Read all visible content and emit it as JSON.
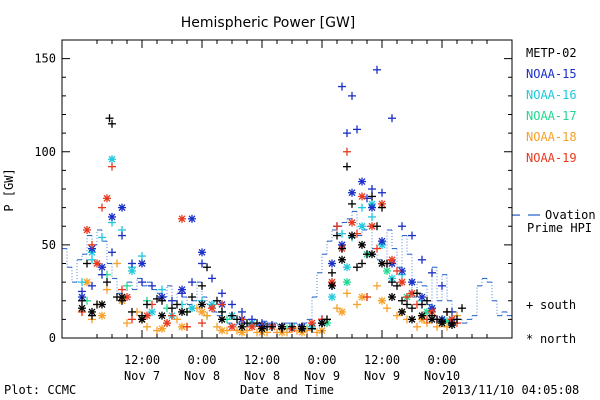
{
  "chart_data": {
    "type": "scatter",
    "title": "Hemispheric Power [GW]",
    "ylabel": "P [GW]",
    "xlabel": "Date and Time",
    "ylim": [
      0,
      160
    ],
    "yticks": [
      0,
      50,
      100,
      150
    ],
    "xlim_hours": [
      -4,
      86
    ],
    "xticks": [
      {
        "hour": 12,
        "time": "12:00",
        "date": "Nov 7"
      },
      {
        "hour": 24,
        "time": "0:00",
        "date": "Nov 8"
      },
      {
        "hour": 36,
        "time": "12:00",
        "date": "Nov 8"
      },
      {
        "hour": 48,
        "time": "0:00",
        "date": "Nov 9"
      },
      {
        "hour": 60,
        "time": "12:00",
        "date": "Nov 9"
      },
      {
        "hour": 72,
        "time": "0:00",
        "date": "Nov10"
      }
    ],
    "series": [
      {
        "name": "METP-02",
        "color": "#000000"
      },
      {
        "name": "NOAA-15",
        "color": "#1a2fc8"
      },
      {
        "name": "NOAA-16",
        "color": "#1fc8dc"
      },
      {
        "name": "NOAA-17",
        "color": "#22d890"
      },
      {
        "name": "NOAA-18",
        "color": "#f7a028"
      },
      {
        "name": "NOAA-19",
        "color": "#e8381e"
      }
    ],
    "markers": {
      "south": "+",
      "north": "*"
    },
    "marker_legend": [
      {
        "symbol": "+",
        "label": "south"
      },
      {
        "symbol": "*",
        "label": "north"
      }
    ],
    "ovation": {
      "label_lines": [
        "Ovation",
        "Prime HPI"
      ],
      "color": "#1f5fc8",
      "value_marker": 66,
      "hours": [
        -4,
        -3,
        -2,
        -1,
        0,
        1,
        2,
        3,
        4,
        5,
        6,
        7,
        8,
        9,
        10,
        11,
        12,
        13,
        14,
        15,
        16,
        17,
        18,
        19,
        20,
        21,
        22,
        23,
        24,
        25,
        26,
        27,
        28,
        29,
        30,
        31,
        32,
        33,
        34,
        35,
        36,
        37,
        38,
        39,
        40,
        41,
        42,
        43,
        44,
        45,
        46,
        47,
        48,
        49,
        50,
        51,
        52,
        53,
        54,
        55,
        56,
        57,
        58,
        59,
        60,
        61,
        62,
        63,
        64,
        65,
        66,
        67,
        68,
        69,
        70,
        71,
        72,
        73,
        74,
        75,
        76,
        77,
        78,
        79,
        80,
        81,
        82,
        83,
        84,
        85,
        86
      ],
      "values": [
        48,
        38,
        30,
        42,
        45,
        55,
        50,
        58,
        52,
        40,
        32,
        24,
        22,
        30,
        26,
        32,
        28,
        30,
        26,
        24,
        22,
        28,
        20,
        24,
        22,
        18,
        20,
        30,
        22,
        18,
        14,
        12,
        10,
        8,
        7,
        8,
        8,
        7,
        7,
        8,
        9,
        8,
        8,
        7,
        8,
        8,
        8,
        7,
        8,
        10,
        22,
        35,
        45,
        52,
        58,
        60,
        62,
        64,
        68,
        55,
        58,
        60,
        48,
        42,
        40,
        58,
        48,
        38,
        55,
        45,
        22,
        30,
        28,
        18,
        38,
        20,
        34,
        20,
        14,
        10,
        8,
        10,
        12,
        28,
        32,
        30,
        20,
        12,
        14,
        12,
        10
      ]
    },
    "points": {
      "METP-02": {
        "hours": [
          0,
          1,
          2,
          3,
          5,
          5.5,
          6,
          7,
          8,
          10,
          12,
          13,
          15,
          16,
          18,
          19,
          21,
          22,
          24,
          25,
          27,
          28,
          30,
          31,
          33,
          35,
          37,
          38,
          40,
          42,
          44,
          46,
          48,
          49,
          50,
          51,
          52,
          53,
          54,
          55,
          56,
          57,
          58,
          59,
          60,
          61,
          62,
          63,
          64,
          65,
          66,
          67,
          68,
          69,
          70,
          71,
          72,
          73,
          74,
          75,
          76,
          0,
          2,
          4,
          8,
          12,
          16,
          20,
          24,
          28,
          32,
          36,
          40,
          44,
          48,
          50,
          52,
          54,
          56,
          58,
          60,
          62,
          64,
          66,
          68,
          70,
          72,
          74
        ],
        "values": [
          20,
          40,
          12,
          18,
          30,
          118,
          115,
          22,
          20,
          14,
          12,
          18,
          21,
          20,
          16,
          18,
          14,
          22,
          28,
          38,
          20,
          14,
          12,
          10,
          8,
          8,
          6,
          6,
          5,
          6,
          6,
          5,
          8,
          10,
          35,
          55,
          48,
          92,
          72,
          38,
          40,
          45,
          76,
          60,
          70,
          40,
          30,
          28,
          20,
          18,
          16,
          24,
          18,
          20,
          12,
          10,
          9,
          14,
          8,
          10,
          16,
          16,
          14,
          18,
          22,
          10,
          12,
          14,
          18,
          10,
          6,
          5,
          6,
          5,
          8,
          28,
          42,
          55,
          50,
          45,
          40,
          22,
          14,
          10,
          12,
          10,
          8,
          7
        ],
        "kinds": [
          "s",
          "s",
          "s",
          "s",
          "s",
          "s",
          "s",
          "s",
          "s",
          "s",
          "s",
          "s",
          "s",
          "s",
          "s",
          "s",
          "s",
          "s",
          "s",
          "s",
          "s",
          "s",
          "s",
          "s",
          "s",
          "s",
          "s",
          "s",
          "s",
          "s",
          "s",
          "s",
          "s",
          "s",
          "s",
          "s",
          "s",
          "s",
          "s",
          "s",
          "s",
          "s",
          "s",
          "s",
          "s",
          "s",
          "s",
          "s",
          "s",
          "s",
          "s",
          "s",
          "s",
          "s",
          "s",
          "s",
          "s",
          "s",
          "s",
          "s",
          "s",
          "n",
          "n",
          "n",
          "n",
          "n",
          "n",
          "n",
          "n",
          "n",
          "n",
          "n",
          "n",
          "n",
          "n",
          "n",
          "n",
          "n",
          "n",
          "n",
          "n",
          "n",
          "n",
          "n",
          "n",
          "n",
          "n",
          "n"
        ]
      },
      "NOAA-15": {
        "hours": [
          0,
          2,
          4,
          6,
          8,
          10,
          12,
          14,
          16,
          18,
          20,
          22,
          24,
          26,
          28,
          30,
          32,
          34,
          36,
          38,
          40,
          42,
          44,
          46,
          48,
          50,
          51,
          52,
          53,
          54,
          55,
          57,
          58,
          59,
          60,
          62,
          64,
          66,
          68,
          70,
          72,
          74,
          0,
          2,
          4,
          6,
          8,
          12,
          16,
          20,
          22,
          24,
          28,
          32,
          36,
          40,
          44,
          48,
          50,
          52,
          54,
          56,
          58,
          60,
          62,
          64,
          66,
          68,
          70,
          72,
          74
        ],
        "values": [
          25,
          28,
          34,
          46,
          55,
          40,
          30,
          28,
          22,
          20,
          24,
          30,
          40,
          32,
          24,
          18,
          14,
          10,
          8,
          7,
          6,
          6,
          6,
          5,
          10,
          28,
          60,
          135,
          110,
          130,
          112,
          75,
          80,
          144,
          78,
          118,
          60,
          55,
          42,
          35,
          28,
          14,
          22,
          48,
          38,
          65,
          70,
          40,
          22,
          26,
          64,
          46,
          18,
          10,
          7,
          6,
          6,
          8,
          40,
          50,
          78,
          84,
          70,
          52,
          40,
          36,
          30,
          22,
          16,
          10,
          8
        ],
        "kinds": [
          "s",
          "s",
          "s",
          "s",
          "s",
          "s",
          "s",
          "s",
          "s",
          "s",
          "s",
          "s",
          "s",
          "s",
          "s",
          "s",
          "s",
          "s",
          "s",
          "s",
          "s",
          "s",
          "s",
          "s",
          "s",
          "s",
          "s",
          "s",
          "s",
          "s",
          "s",
          "s",
          "s",
          "s",
          "s",
          "s",
          "s",
          "s",
          "s",
          "s",
          "s",
          "s",
          "n",
          "n",
          "n",
          "n",
          "n",
          "n",
          "n",
          "n",
          "n",
          "n",
          "n",
          "n",
          "n",
          "n",
          "n",
          "n",
          "n",
          "n",
          "n",
          "n",
          "n",
          "n",
          "n",
          "n",
          "n",
          "n",
          "n",
          "n",
          "n"
        ]
      },
      "NOAA-16": {
        "hours": [
          0,
          2,
          4,
          6,
          8,
          10,
          12,
          16,
          20,
          24,
          28,
          32,
          36,
          40,
          44,
          48,
          50,
          52,
          54,
          56,
          58,
          60,
          62,
          64,
          66,
          68,
          70,
          72,
          74,
          2,
          6,
          10,
          14,
          18,
          22,
          26,
          30,
          34,
          38,
          42,
          46,
          50,
          53,
          56,
          58,
          60,
          62,
          66,
          70,
          74
        ],
        "values": [
          30,
          42,
          54,
          62,
          58,
          38,
          44,
          26,
          18,
          20,
          14,
          10,
          7,
          6,
          6,
          8,
          30,
          56,
          54,
          70,
          65,
          50,
          40,
          34,
          30,
          20,
          16,
          10,
          8,
          46,
          96,
          36,
          14,
          12,
          16,
          18,
          12,
          8,
          6,
          6,
          6,
          22,
          38,
          60,
          72,
          50,
          32,
          24,
          16,
          10
        ],
        "kinds": [
          "s",
          "s",
          "s",
          "s",
          "s",
          "s",
          "s",
          "s",
          "s",
          "s",
          "s",
          "s",
          "s",
          "s",
          "s",
          "s",
          "s",
          "s",
          "s",
          "s",
          "s",
          "s",
          "s",
          "s",
          "s",
          "s",
          "s",
          "s",
          "s",
          "n",
          "n",
          "n",
          "n",
          "n",
          "n",
          "n",
          "n",
          "n",
          "n",
          "n",
          "n",
          "n",
          "n",
          "n",
          "n",
          "n",
          "n",
          "n",
          "n",
          "n"
        ]
      },
      "NOAA-17": {
        "hours": [
          1,
          5,
          9,
          13,
          17,
          21,
          25,
          29,
          33,
          37,
          41,
          45,
          49,
          53,
          57,
          61,
          65,
          69,
          73
        ],
        "values": [
          20,
          34,
          28,
          20,
          16,
          14,
          12,
          10,
          8,
          6,
          5,
          5,
          8,
          30,
          45,
          36,
          22,
          14,
          9
        ],
        "kinds": [
          "s",
          "s",
          "s",
          "s",
          "s",
          "s",
          "s",
          "s",
          "s",
          "s",
          "s",
          "s",
          "n",
          "n",
          "n",
          "n",
          "n",
          "n",
          "n"
        ]
      },
      "NOAA-18": {
        "hours": [
          0,
          2,
          3,
          5,
          7,
          9,
          11,
          13,
          15,
          17,
          19,
          21,
          23,
          25,
          27,
          29,
          31,
          33,
          35,
          37,
          39,
          41,
          43,
          45,
          47,
          49,
          51,
          53,
          55,
          57,
          59,
          61,
          63,
          65,
          67,
          69,
          71,
          73,
          75,
          1,
          4,
          8,
          12,
          16,
          20,
          24,
          28,
          32,
          36,
          40,
          44,
          48,
          52,
          56,
          60,
          64,
          68,
          72
        ],
        "values": [
          14,
          10,
          18,
          26,
          40,
          8,
          14,
          6,
          4,
          8,
          10,
          6,
          16,
          12,
          6,
          4,
          4,
          4,
          3,
          3,
          3,
          3,
          4,
          4,
          3,
          10,
          16,
          24,
          18,
          22,
          28,
          16,
          12,
          10,
          6,
          8,
          6,
          6,
          12,
          30,
          12,
          20,
          10,
          5,
          6,
          14,
          4,
          3,
          3,
          3,
          3,
          4,
          14,
          22,
          20,
          14,
          10,
          8
        ],
        "kinds": [
          "s",
          "s",
          "s",
          "s",
          "s",
          "s",
          "s",
          "s",
          "s",
          "s",
          "s",
          "s",
          "s",
          "s",
          "s",
          "s",
          "s",
          "s",
          "s",
          "s",
          "s",
          "s",
          "s",
          "s",
          "s",
          "s",
          "s",
          "s",
          "s",
          "s",
          "s",
          "s",
          "s",
          "s",
          "s",
          "s",
          "s",
          "s",
          "s",
          "n",
          "n",
          "n",
          "n",
          "n",
          "n",
          "n",
          "n",
          "n",
          "n",
          "n",
          "n",
          "n",
          "n",
          "n",
          "n",
          "n",
          "n",
          "n"
        ]
      },
      "NOAA-19": {
        "hours": [
          0,
          2,
          4,
          6,
          8,
          10,
          14,
          18,
          21,
          24,
          28,
          32,
          36,
          40,
          44,
          48,
          51,
          53,
          55,
          57,
          59,
          61,
          63,
          65,
          67,
          69,
          71,
          73,
          75,
          1,
          3,
          5,
          9,
          13,
          17,
          20,
          26,
          30,
          34,
          38,
          42,
          46,
          50,
          52,
          54,
          56,
          58,
          60,
          62,
          64,
          66,
          70,
          74
        ],
        "values": [
          14,
          50,
          70,
          92,
          26,
          10,
          18,
          12,
          6,
          8,
          18,
          10,
          6,
          6,
          6,
          10,
          60,
          100,
          56,
          22,
          48,
          40,
          36,
          22,
          18,
          10,
          10,
          14,
          8,
          58,
          40,
          75,
          22,
          12,
          8,
          64,
          16,
          6,
          6,
          6,
          5,
          8,
          30,
          48,
          62,
          76,
          60,
          72,
          42,
          30,
          24,
          14,
          10
        ],
        "kinds": [
          "s",
          "s",
          "s",
          "s",
          "s",
          "s",
          "s",
          "s",
          "s",
          "s",
          "s",
          "s",
          "s",
          "s",
          "s",
          "s",
          "s",
          "s",
          "s",
          "s",
          "s",
          "s",
          "s",
          "s",
          "s",
          "s",
          "s",
          "s",
          "s",
          "n",
          "n",
          "n",
          "n",
          "n",
          "n",
          "n",
          "n",
          "n",
          "n",
          "n",
          "n",
          "n",
          "n",
          "n",
          "n",
          "n",
          "n",
          "n",
          "n",
          "n",
          "n",
          "n",
          "n"
        ]
      }
    }
  },
  "footer": {
    "plot_credit": "Plot: CCMC",
    "timestamp": "2013/11/10 04:05:08"
  }
}
